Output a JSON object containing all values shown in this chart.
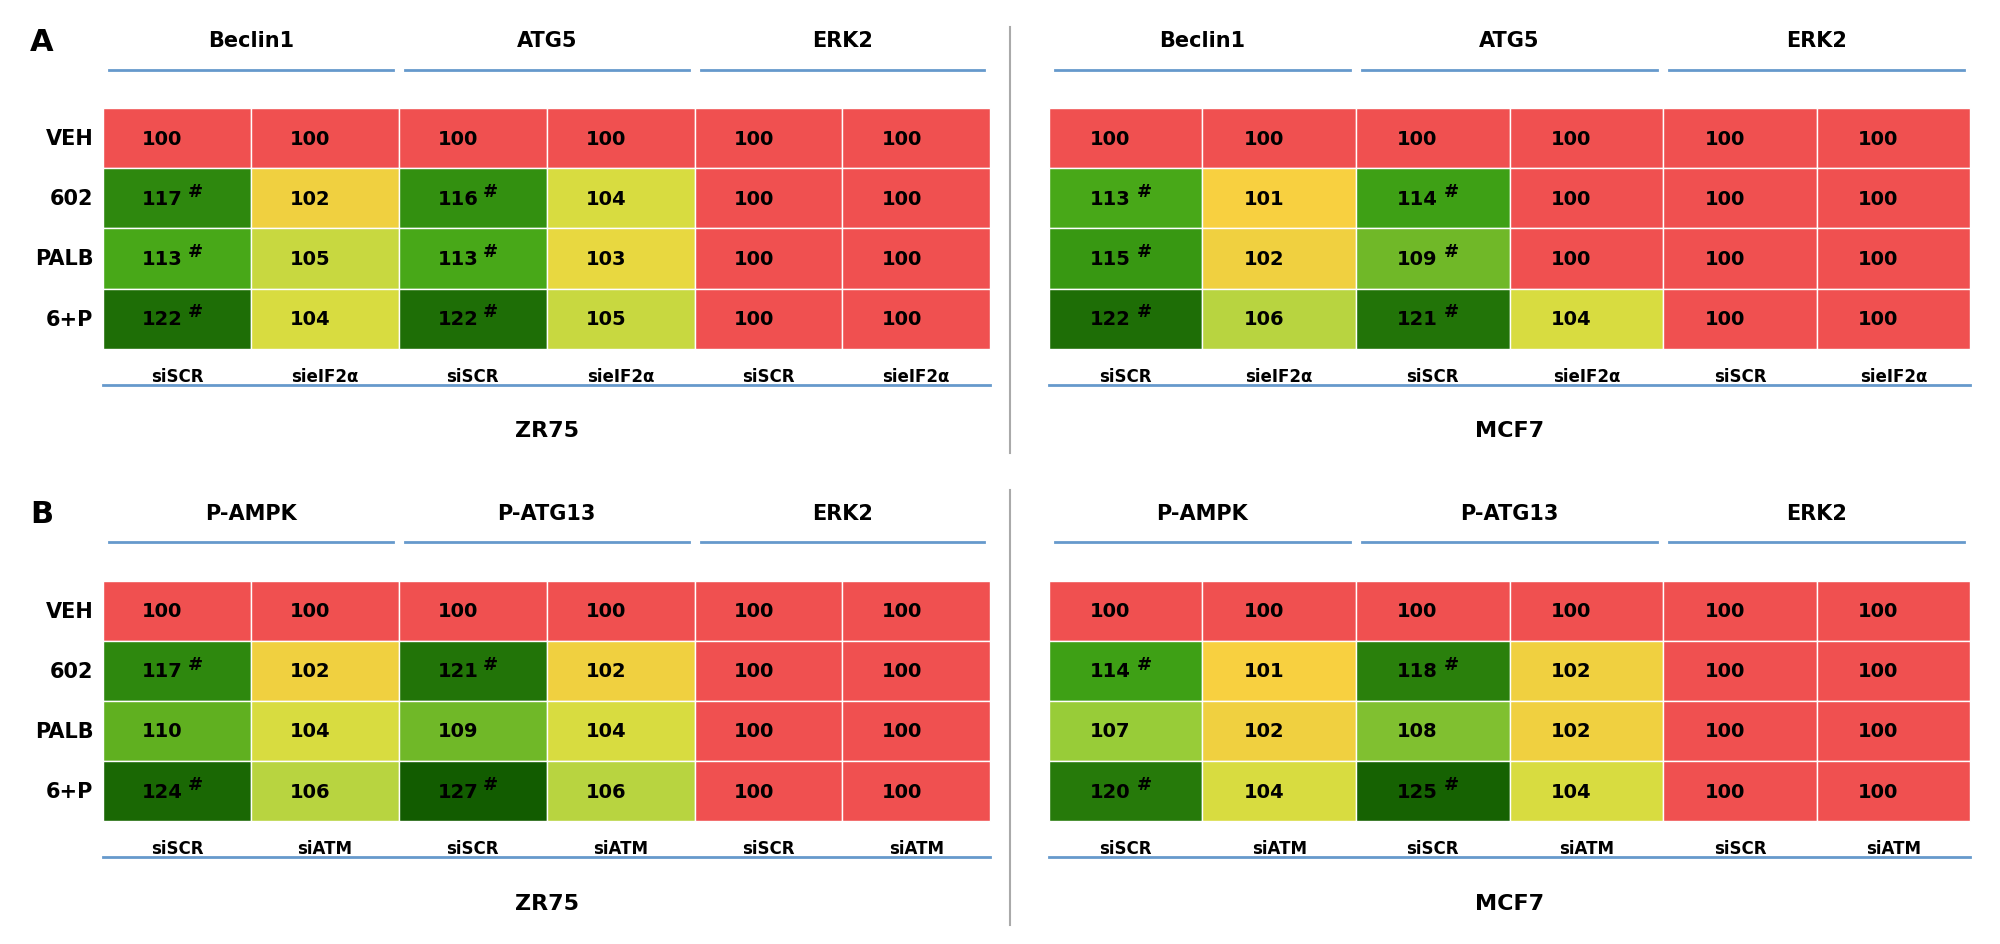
{
  "panel_A": {
    "rows": [
      "VEH",
      "602",
      "PALB",
      "6+P"
    ],
    "ZR75": {
      "col_groups": [
        "Beclin1",
        "ATG5",
        "ERK2"
      ],
      "col_labels": [
        "siSCR",
        "sieIF2α",
        "siSCR",
        "sieIF2α",
        "siSCR",
        "sieIF2α"
      ],
      "cell_label": "ZR75",
      "values": [
        [
          100,
          100,
          100,
          100,
          100,
          100
        ],
        [
          117,
          102,
          116,
          104,
          100,
          100
        ],
        [
          113,
          105,
          113,
          103,
          100,
          100
        ],
        [
          122,
          104,
          122,
          105,
          100,
          100
        ]
      ],
      "hash": [
        [
          false,
          false,
          false,
          false,
          false,
          false
        ],
        [
          true,
          false,
          true,
          false,
          false,
          false
        ],
        [
          true,
          false,
          true,
          false,
          false,
          false
        ],
        [
          true,
          false,
          true,
          false,
          false,
          false
        ]
      ]
    },
    "MCF7": {
      "col_groups": [
        "Beclin1",
        "ATG5",
        "ERK2"
      ],
      "col_labels": [
        "siSCR",
        "sieIF2α",
        "siSCR",
        "sieIF2α",
        "siSCR",
        "sieIF2α"
      ],
      "cell_label": "MCF7",
      "values": [
        [
          100,
          100,
          100,
          100,
          100,
          100
        ],
        [
          113,
          101,
          114,
          100,
          100,
          100
        ],
        [
          115,
          102,
          109,
          100,
          100,
          100
        ],
        [
          122,
          106,
          121,
          104,
          100,
          100
        ]
      ],
      "hash": [
        [
          false,
          false,
          false,
          false,
          false,
          false
        ],
        [
          true,
          false,
          true,
          false,
          false,
          false
        ],
        [
          true,
          false,
          true,
          false,
          false,
          false
        ],
        [
          true,
          false,
          true,
          false,
          false,
          false
        ]
      ]
    }
  },
  "panel_B": {
    "rows": [
      "VEH",
      "602",
      "PALB",
      "6+P"
    ],
    "ZR75": {
      "col_groups": [
        "P-AMPK",
        "P-ATG13",
        "ERK2"
      ],
      "col_labels": [
        "siSCR",
        "siATM",
        "siSCR",
        "siATM",
        "siSCR",
        "siATM"
      ],
      "cell_label": "ZR75",
      "values": [
        [
          100,
          100,
          100,
          100,
          100,
          100
        ],
        [
          117,
          102,
          121,
          102,
          100,
          100
        ],
        [
          110,
          104,
          109,
          104,
          100,
          100
        ],
        [
          124,
          106,
          127,
          106,
          100,
          100
        ]
      ],
      "hash": [
        [
          false,
          false,
          false,
          false,
          false,
          false
        ],
        [
          true,
          false,
          true,
          false,
          false,
          false
        ],
        [
          false,
          false,
          false,
          false,
          false,
          false
        ],
        [
          true,
          false,
          true,
          false,
          false,
          false
        ]
      ]
    },
    "MCF7": {
      "col_groups": [
        "P-AMPK",
        "P-ATG13",
        "ERK2"
      ],
      "col_labels": [
        "siSCR",
        "siATM",
        "siSCR",
        "siATM",
        "siSCR",
        "siATM"
      ],
      "cell_label": "MCF7",
      "values": [
        [
          100,
          100,
          100,
          100,
          100,
          100
        ],
        [
          114,
          101,
          118,
          102,
          100,
          100
        ],
        [
          107,
          102,
          108,
          102,
          100,
          100
        ],
        [
          120,
          104,
          125,
          104,
          100,
          100
        ]
      ],
      "hash": [
        [
          false,
          false,
          false,
          false,
          false,
          false
        ],
        [
          true,
          false,
          true,
          false,
          false,
          false
        ],
        [
          false,
          false,
          false,
          false,
          false,
          false
        ],
        [
          true,
          false,
          true,
          false,
          false,
          false
        ]
      ]
    }
  },
  "line_color": "#6699CC"
}
